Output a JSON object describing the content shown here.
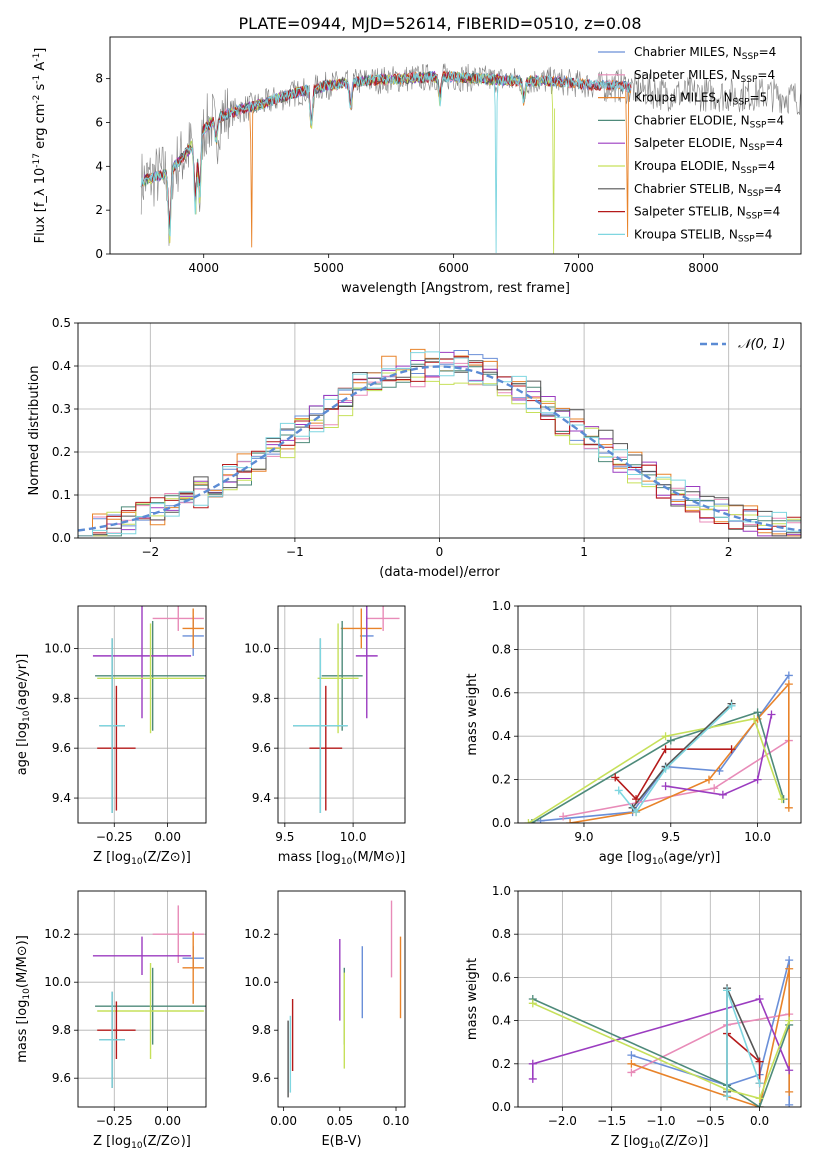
{
  "figure_title": "PLATE=0944, MJD=52614, FIBERID=0510, z=0.08",
  "model_colors": {
    "Chabrier MILES": "#6a8fd8",
    "Salpeter MILES": "#e88bb8",
    "Kroupa MILES": "#e8832a",
    "Chabrier ELODIE": "#4e8a7a",
    "Salpeter ELODIE": "#9b3cc0",
    "Kroupa ELODIE": "#c6e05a",
    "Chabrier STELIB": "#555555",
    "Salpeter STELIB": "#b51a1a",
    "Kroupa STELIB": "#7fd6e0"
  },
  "chart_data": [
    {
      "id": "spectrum",
      "type": "line",
      "xlabel": "wavelength [Angstrom, rest frame]",
      "ylabel": "Flux [f_λ 10^-17 erg cm^-2 s^-1 A^-1]",
      "xlim": [
        3250,
        8780
      ],
      "ylim": [
        0,
        9.9
      ],
      "xticks": [
        4000,
        5000,
        6000,
        7000,
        8000
      ],
      "yticks": [
        0,
        2,
        4,
        6,
        8
      ],
      "grid": false,
      "legend_position": "right",
      "data_color": "#808080",
      "legend": [
        {
          "label": "Chabrier MILES, N_SSP=4",
          "color": "#6a8fd8"
        },
        {
          "label": "Salpeter MILES, N_SSP=4",
          "color": "#e88bb8"
        },
        {
          "label": "Kroupa MILES, N_SSP=5",
          "color": "#e8832a"
        },
        {
          "label": "Chabrier ELODIE, N_SSP=4",
          "color": "#4e8a7a"
        },
        {
          "label": "Salpeter ELODIE, N_SSP=4",
          "color": "#9b3cc0"
        },
        {
          "label": "Kroupa ELODIE, N_SSP=4",
          "color": "#c6e05a"
        },
        {
          "label": "Chabrier STELIB, N_SSP=4",
          "color": "#555555"
        },
        {
          "label": "Salpeter STELIB, N_SSP=4",
          "color": "#b51a1a"
        },
        {
          "label": "Kroupa STELIB, N_SSP=4",
          "color": "#7fd6e0"
        }
      ],
      "continuum": {
        "x": [
          3500,
          3700,
          3800,
          3900,
          4000,
          4100,
          4300,
          4500,
          4700,
          5000,
          5300,
          5600,
          5900,
          6200,
          6500,
          6800,
          7100,
          7300,
          7500,
          7700,
          7900,
          8200,
          8500,
          8780
        ],
        "y": [
          3.3,
          3.7,
          4.2,
          4.9,
          5.7,
          6.2,
          6.6,
          6.9,
          7.3,
          7.7,
          7.9,
          8.0,
          8.1,
          8.0,
          7.9,
          7.9,
          7.7,
          7.7,
          7.5,
          7.3,
          7.3,
          7.25,
          7.3,
          7.1
        ]
      },
      "dips": [
        {
          "x": 3727,
          "depth": 3.2,
          "series": "data"
        },
        {
          "x": 3934,
          "depth": 3.3,
          "series": "data"
        },
        {
          "x": 3968,
          "depth": 3.0,
          "series": "data"
        },
        {
          "x": 4101,
          "depth": 1.2,
          "series": "data"
        },
        {
          "x": 4383,
          "depth": 6.6,
          "series": "Kroupa MILES"
        },
        {
          "x": 4861,
          "depth": 1.8,
          "series": "data"
        },
        {
          "x": 5175,
          "depth": 1.2,
          "series": "data"
        },
        {
          "x": 5890,
          "depth": 1.2,
          "series": "data"
        },
        {
          "x": 6340,
          "depth": 8.0,
          "series": "Kroupa STELIB"
        },
        {
          "x": 6563,
          "depth": 1.0,
          "series": "data"
        },
        {
          "x": 6800,
          "depth": 7.9,
          "series": "Kroupa ELODIE"
        },
        {
          "x": 7390,
          "depth": 7.7,
          "series": "Kroupa MILES"
        }
      ]
    },
    {
      "id": "residuals",
      "type": "bar",
      "xlabel": "(data-model)/error",
      "ylabel": "Normed distribution",
      "xlim": [
        -2.5,
        2.5
      ],
      "ylim": [
        0,
        0.5
      ],
      "xticks": [
        -2,
        -1,
        0,
        1,
        2
      ],
      "yticks": [
        0,
        0.1,
        0.2,
        0.3,
        0.4,
        0.5
      ],
      "grid": true,
      "legend": [
        {
          "label": "𝒩(0, 1)",
          "color": "#5b8bd4",
          "style": "dashed"
        }
      ],
      "legend_position": "upper right",
      "bin_width": 0.1,
      "histogram_offsets": [
        0.01,
        -0.015,
        0.02,
        -0.01,
        0.015,
        -0.02,
        0.025,
        -0.005,
        0.005
      ]
    },
    {
      "id": "age_vs_Z",
      "type": "scatter",
      "xlabel": "Z [log10(Z/Z⊙)]",
      "ylabel": "age [log10(age/yr)]",
      "xlim": [
        -0.42,
        0.18
      ],
      "ylim": [
        9.3,
        10.17
      ],
      "xticks": [
        -0.25,
        0.0
      ],
      "xticklabels": [
        "−0.25",
        "0.00"
      ],
      "yticks": [
        9.4,
        9.6,
        9.8,
        10.0
      ],
      "grid": true,
      "points": [
        {
          "series": "Chabrier MILES",
          "x": 0.12,
          "xerr": 0.05,
          "y": 10.05,
          "yerr": 0.08
        },
        {
          "series": "Salpeter MILES",
          "x": 0.05,
          "xerr": 0.12,
          "y": 10.12,
          "yerr": 0.05
        },
        {
          "series": "Kroupa MILES",
          "x": 0.12,
          "xerr": 0.05,
          "y": 10.08,
          "yerr": 0.08
        },
        {
          "series": "Chabrier ELODIE",
          "x": -0.07,
          "xerr": 0.27,
          "y": 9.89,
          "yerr": 0.22
        },
        {
          "series": "Salpeter ELODIE",
          "x": -0.12,
          "xerr": 0.23,
          "y": 9.97,
          "yerr": 0.25
        },
        {
          "series": "Kroupa ELODIE",
          "x": -0.08,
          "xerr": 0.25,
          "y": 9.88,
          "yerr": 0.22
        },
        {
          "series": "Chabrier STELIB",
          "x": -0.26,
          "xerr": 0.06,
          "y": 9.69,
          "yerr": 0.35
        },
        {
          "series": "Salpeter STELIB",
          "x": -0.24,
          "xerr": 0.09,
          "y": 9.6,
          "yerr": 0.25
        },
        {
          "series": "Kroupa STELIB",
          "x": -0.26,
          "xerr": 0.06,
          "y": 9.69,
          "yerr": 0.35
        }
      ]
    },
    {
      "id": "age_vs_mass",
      "type": "scatter",
      "xlabel": "mass [log10(M/M⊙)]",
      "ylabel": "",
      "xlim": [
        9.45,
        10.38
      ],
      "ylim": [
        9.3,
        10.17
      ],
      "xticks": [
        9.5,
        10.0
      ],
      "yticks": [
        9.4,
        9.6,
        9.8,
        10.0
      ],
      "grid": true,
      "points": [
        {
          "series": "Chabrier MILES",
          "x": 10.1,
          "xerr": 0.05,
          "y": 10.05,
          "yerr": 0.08
        },
        {
          "series": "Salpeter MILES",
          "x": 10.22,
          "xerr": 0.12,
          "y": 10.12,
          "yerr": 0.05
        },
        {
          "series": "Kroupa MILES",
          "x": 10.06,
          "xerr": 0.15,
          "y": 10.08,
          "yerr": 0.08
        },
        {
          "series": "Chabrier ELODIE",
          "x": 9.92,
          "xerr": 0.15,
          "y": 9.89,
          "yerr": 0.22
        },
        {
          "series": "Salpeter ELODIE",
          "x": 10.1,
          "xerr": 0.08,
          "y": 9.97,
          "yerr": 0.25
        },
        {
          "series": "Kroupa ELODIE",
          "x": 9.89,
          "xerr": 0.15,
          "y": 9.88,
          "yerr": 0.22
        },
        {
          "series": "Chabrier STELIB",
          "x": 9.76,
          "xerr": 0.2,
          "y": 9.69,
          "yerr": 0.35
        },
        {
          "series": "Salpeter STELIB",
          "x": 9.8,
          "xerr": 0.12,
          "y": 9.6,
          "yerr": 0.25
        },
        {
          "series": "Kroupa STELIB",
          "x": 9.76,
          "xerr": 0.2,
          "y": 9.69,
          "yerr": 0.35
        }
      ]
    },
    {
      "id": "massweight_vs_age",
      "type": "line",
      "xlabel": "age [log10(age/yr)]",
      "ylabel": "mass weight",
      "xlim": [
        8.62,
        10.25
      ],
      "ylim": [
        0,
        1.0
      ],
      "xticks": [
        9.0,
        9.5,
        10.0
      ],
      "yticks": [
        0,
        0.2,
        0.4,
        0.6,
        0.8,
        1.0
      ],
      "grid": true,
      "series": [
        {
          "name": "Chabrier MILES",
          "x": [
            8.75,
            9.28,
            9.47,
            9.78,
            10.18
          ],
          "y": [
            0.01,
            0.05,
            0.26,
            0.24,
            0.68
          ]
        },
        {
          "name": "Salpeter MILES",
          "x": [
            8.88,
            9.75,
            10.18
          ],
          "y": [
            0.03,
            0.16,
            0.38
          ]
        },
        {
          "name": "Kroupa MILES",
          "x": [
            8.92,
            9.3,
            9.72,
            10.0,
            10.18,
            10.18
          ],
          "y": [
            0.0,
            0.05,
            0.2,
            0.48,
            0.64,
            0.07
          ]
        },
        {
          "name": "Chabrier ELODIE",
          "x": [
            8.7,
            9.5,
            10.0,
            10.15
          ],
          "y": [
            0.0,
            0.38,
            0.51,
            0.11
          ]
        },
        {
          "name": "Salpeter ELODIE",
          "x": [
            9.47,
            9.8,
            10.0,
            10.08
          ],
          "y": [
            0.17,
            0.13,
            0.2,
            0.5
          ]
        },
        {
          "name": "Kroupa ELODIE",
          "x": [
            8.68,
            9.47,
            9.98,
            10.14
          ],
          "y": [
            0.0,
            0.4,
            0.48,
            0.11
          ]
        },
        {
          "name": "Chabrier STELIB",
          "x": [
            9.28,
            9.47,
            9.85
          ],
          "y": [
            0.07,
            0.26,
            0.55
          ]
        },
        {
          "name": "Salpeter STELIB",
          "x": [
            9.18,
            9.3,
            9.47,
            9.85
          ],
          "y": [
            0.21,
            0.11,
            0.34,
            0.34
          ]
        },
        {
          "name": "Kroupa STELIB",
          "x": [
            9.2,
            9.3,
            9.47,
            9.85
          ],
          "y": [
            0.15,
            0.05,
            0.25,
            0.54
          ]
        }
      ]
    },
    {
      "id": "mass_vs_Z",
      "type": "scatter",
      "xlabel": "Z [log10(Z/Z⊙)]",
      "ylabel": "mass [log10(M/M⊙)]",
      "xlim": [
        -0.42,
        0.18
      ],
      "ylim": [
        9.48,
        10.38
      ],
      "xticks": [
        -0.25,
        0.0
      ],
      "xticklabels": [
        "−0.25",
        "0.00"
      ],
      "yticks": [
        9.6,
        9.8,
        10.0,
        10.2
      ],
      "grid": true,
      "points": [
        {
          "series": "Chabrier MILES",
          "x": 0.12,
          "xerr": 0.05,
          "y": 10.1,
          "yerr": 0.05
        },
        {
          "series": "Salpeter MILES",
          "x": 0.05,
          "xerr": 0.12,
          "y": 10.2,
          "yerr": 0.12
        },
        {
          "series": "Kroupa MILES",
          "x": 0.12,
          "xerr": 0.05,
          "y": 10.06,
          "yerr": 0.15
        },
        {
          "series": "Chabrier ELODIE",
          "x": -0.07,
          "xerr": 0.27,
          "y": 9.9,
          "yerr": 0.16
        },
        {
          "series": "Salpeter ELODIE",
          "x": -0.12,
          "xerr": 0.23,
          "y": 10.11,
          "yerr": 0.08
        },
        {
          "series": "Kroupa ELODIE",
          "x": -0.08,
          "xerr": 0.25,
          "y": 9.88,
          "yerr": 0.2
        },
        {
          "series": "Chabrier STELIB",
          "x": -0.26,
          "xerr": 0.06,
          "y": 9.76,
          "yerr": 0.2
        },
        {
          "series": "Salpeter STELIB",
          "x": -0.24,
          "xerr": 0.09,
          "y": 9.8,
          "yerr": 0.12
        },
        {
          "series": "Kroupa STELIB",
          "x": -0.26,
          "xerr": 0.06,
          "y": 9.76,
          "yerr": 0.2
        }
      ]
    },
    {
      "id": "mass_vs_ebv",
      "type": "scatter",
      "xlabel": "E(B-V)",
      "ylabel": "",
      "xlim": [
        -0.005,
        0.108
      ],
      "ylim": [
        9.48,
        10.38
      ],
      "xticks": [
        0.0,
        0.05,
        0.1
      ],
      "xticklabels": [
        "0.00",
        "0.05",
        "0.10"
      ],
      "yticks": [
        9.6,
        9.8,
        10.0,
        10.2
      ],
      "grid": false,
      "points": [
        {
          "series": "Chabrier MILES",
          "x": 0.07,
          "xerr": 0,
          "y": 10.0,
          "yerr": 0.15
        },
        {
          "series": "Salpeter MILES",
          "x": 0.096,
          "xerr": 0,
          "y": 10.18,
          "yerr": 0.16
        },
        {
          "series": "Kroupa MILES",
          "x": 0.104,
          "xerr": 0,
          "y": 10.02,
          "yerr": 0.17
        },
        {
          "series": "Chabrier ELODIE",
          "x": 0.054,
          "xerr": 0,
          "y": 9.9,
          "yerr": 0.16
        },
        {
          "series": "Salpeter ELODIE",
          "x": 0.05,
          "xerr": 0,
          "y": 10.01,
          "yerr": 0.17
        },
        {
          "series": "Kroupa ELODIE",
          "x": 0.054,
          "xerr": 0,
          "y": 9.84,
          "yerr": 0.2
        },
        {
          "series": "Chabrier STELIB",
          "x": 0.004,
          "xerr": 0,
          "y": 9.68,
          "yerr": 0.16
        },
        {
          "series": "Salpeter STELIB",
          "x": 0.008,
          "xerr": 0,
          "y": 9.78,
          "yerr": 0.15
        },
        {
          "series": "Kroupa STELIB",
          "x": 0.006,
          "xerr": 0,
          "y": 9.7,
          "yerr": 0.16
        }
      ]
    },
    {
      "id": "massweight_vs_Z",
      "type": "line",
      "xlabel": "Z [log10(Z/Z⊙)]",
      "ylabel": "mass weight",
      "xlim": [
        -2.45,
        0.42
      ],
      "ylim": [
        0,
        1.0
      ],
      "xticks": [
        -2.0,
        -1.5,
        -1.0,
        -0.5,
        0.0
      ],
      "xticklabels": [
        "−2.0",
        "−1.5",
        "−1.0",
        "−0.5",
        "0.0"
      ],
      "yticks": [
        0,
        0.2,
        0.4,
        0.6,
        0.8,
        1.0
      ],
      "grid": true,
      "series": [
        {
          "name": "Chabrier MILES",
          "x": [
            -1.3,
            -0.33,
            0.0,
            0.3,
            0.3
          ],
          "y": [
            0.24,
            0.1,
            0.15,
            0.68,
            0.01
          ]
        },
        {
          "name": "Salpeter MILES",
          "x": [
            -1.3,
            -0.33,
            0.3
          ],
          "y": [
            0.16,
            0.38,
            0.43
          ]
        },
        {
          "name": "Kroupa MILES",
          "x": [
            -1.3,
            -0.33,
            0.0,
            0.3,
            0.3
          ],
          "y": [
            0.2,
            0.05,
            0.0,
            0.64,
            0.07
          ]
        },
        {
          "name": "Chabrier ELODIE",
          "x": [
            -2.3,
            -0.33,
            0.0,
            0.3
          ],
          "y": [
            0.5,
            0.1,
            0.0,
            0.38
          ]
        },
        {
          "name": "Salpeter ELODIE",
          "x": [
            -2.3,
            -2.3,
            0.0,
            0.3
          ],
          "y": [
            0.13,
            0.2,
            0.5,
            0.17
          ]
        },
        {
          "name": "Kroupa ELODIE",
          "x": [
            -2.3,
            -0.33,
            0.0,
            0.3
          ],
          "y": [
            0.48,
            0.08,
            0.04,
            0.4
          ]
        },
        {
          "name": "Chabrier STELIB",
          "x": [
            -0.33,
            -0.33,
            0.0
          ],
          "y": [
            0.07,
            0.55,
            0.21
          ]
        },
        {
          "name": "Salpeter STELIB",
          "x": [
            -0.33,
            0.0,
            0.0
          ],
          "y": [
            0.34,
            0.21,
            0.11
          ]
        },
        {
          "name": "Kroupa STELIB",
          "x": [
            -0.33,
            -0.33,
            0.0
          ],
          "y": [
            0.05,
            0.54,
            0.11
          ]
        }
      ]
    }
  ]
}
